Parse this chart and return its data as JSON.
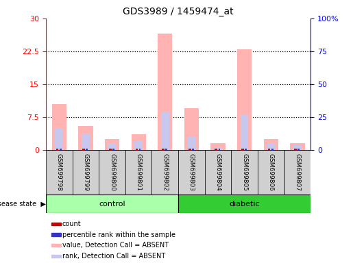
{
  "title": "GDS3989 / 1459474_at",
  "samples": [
    "GSM699798",
    "GSM699799",
    "GSM699800",
    "GSM699801",
    "GSM699802",
    "GSM699803",
    "GSM699804",
    "GSM699805",
    "GSM699806",
    "GSM699807"
  ],
  "groups": [
    "control",
    "control",
    "control",
    "control",
    "control",
    "diabetic",
    "diabetic",
    "diabetic",
    "diabetic",
    "diabetic"
  ],
  "left_ylim": [
    0,
    30
  ],
  "left_yticks": [
    0,
    7.5,
    15,
    22.5,
    30
  ],
  "left_yticklabels": [
    "0",
    "7.5",
    "15",
    "22.5",
    "30"
  ],
  "right_ylim": [
    0,
    100
  ],
  "right_yticks": [
    0,
    25,
    50,
    75,
    100
  ],
  "right_yticklabels": [
    "0",
    "25",
    "50",
    "75",
    "100%"
  ],
  "value_absent": [
    10.5,
    5.5,
    2.5,
    3.5,
    26.5,
    9.5,
    1.5,
    23.0,
    2.5,
    1.5
  ],
  "rank_absent": [
    5.0,
    3.5,
    1.5,
    2.0,
    8.5,
    3.0,
    0.5,
    8.0,
    1.5,
    1.0
  ],
  "count_color": "#cc0000",
  "rank_color": "#3333cc",
  "value_absent_color": "#ffb3b3",
  "rank_absent_color": "#c8c8ee",
  "control_color": "#aaffaa",
  "diabetic_color": "#33cc33",
  "sample_bg_color": "#d0d0d0",
  "dotted_line_color": "#000000",
  "legend_items": [
    {
      "label": "count",
      "color": "#cc0000"
    },
    {
      "label": "percentile rank within the sample",
      "color": "#3333cc"
    },
    {
      "label": "value, Detection Call = ABSENT",
      "color": "#ffb3b3"
    },
    {
      "label": "rank, Detection Call = ABSENT",
      "color": "#c8c8ee"
    }
  ]
}
